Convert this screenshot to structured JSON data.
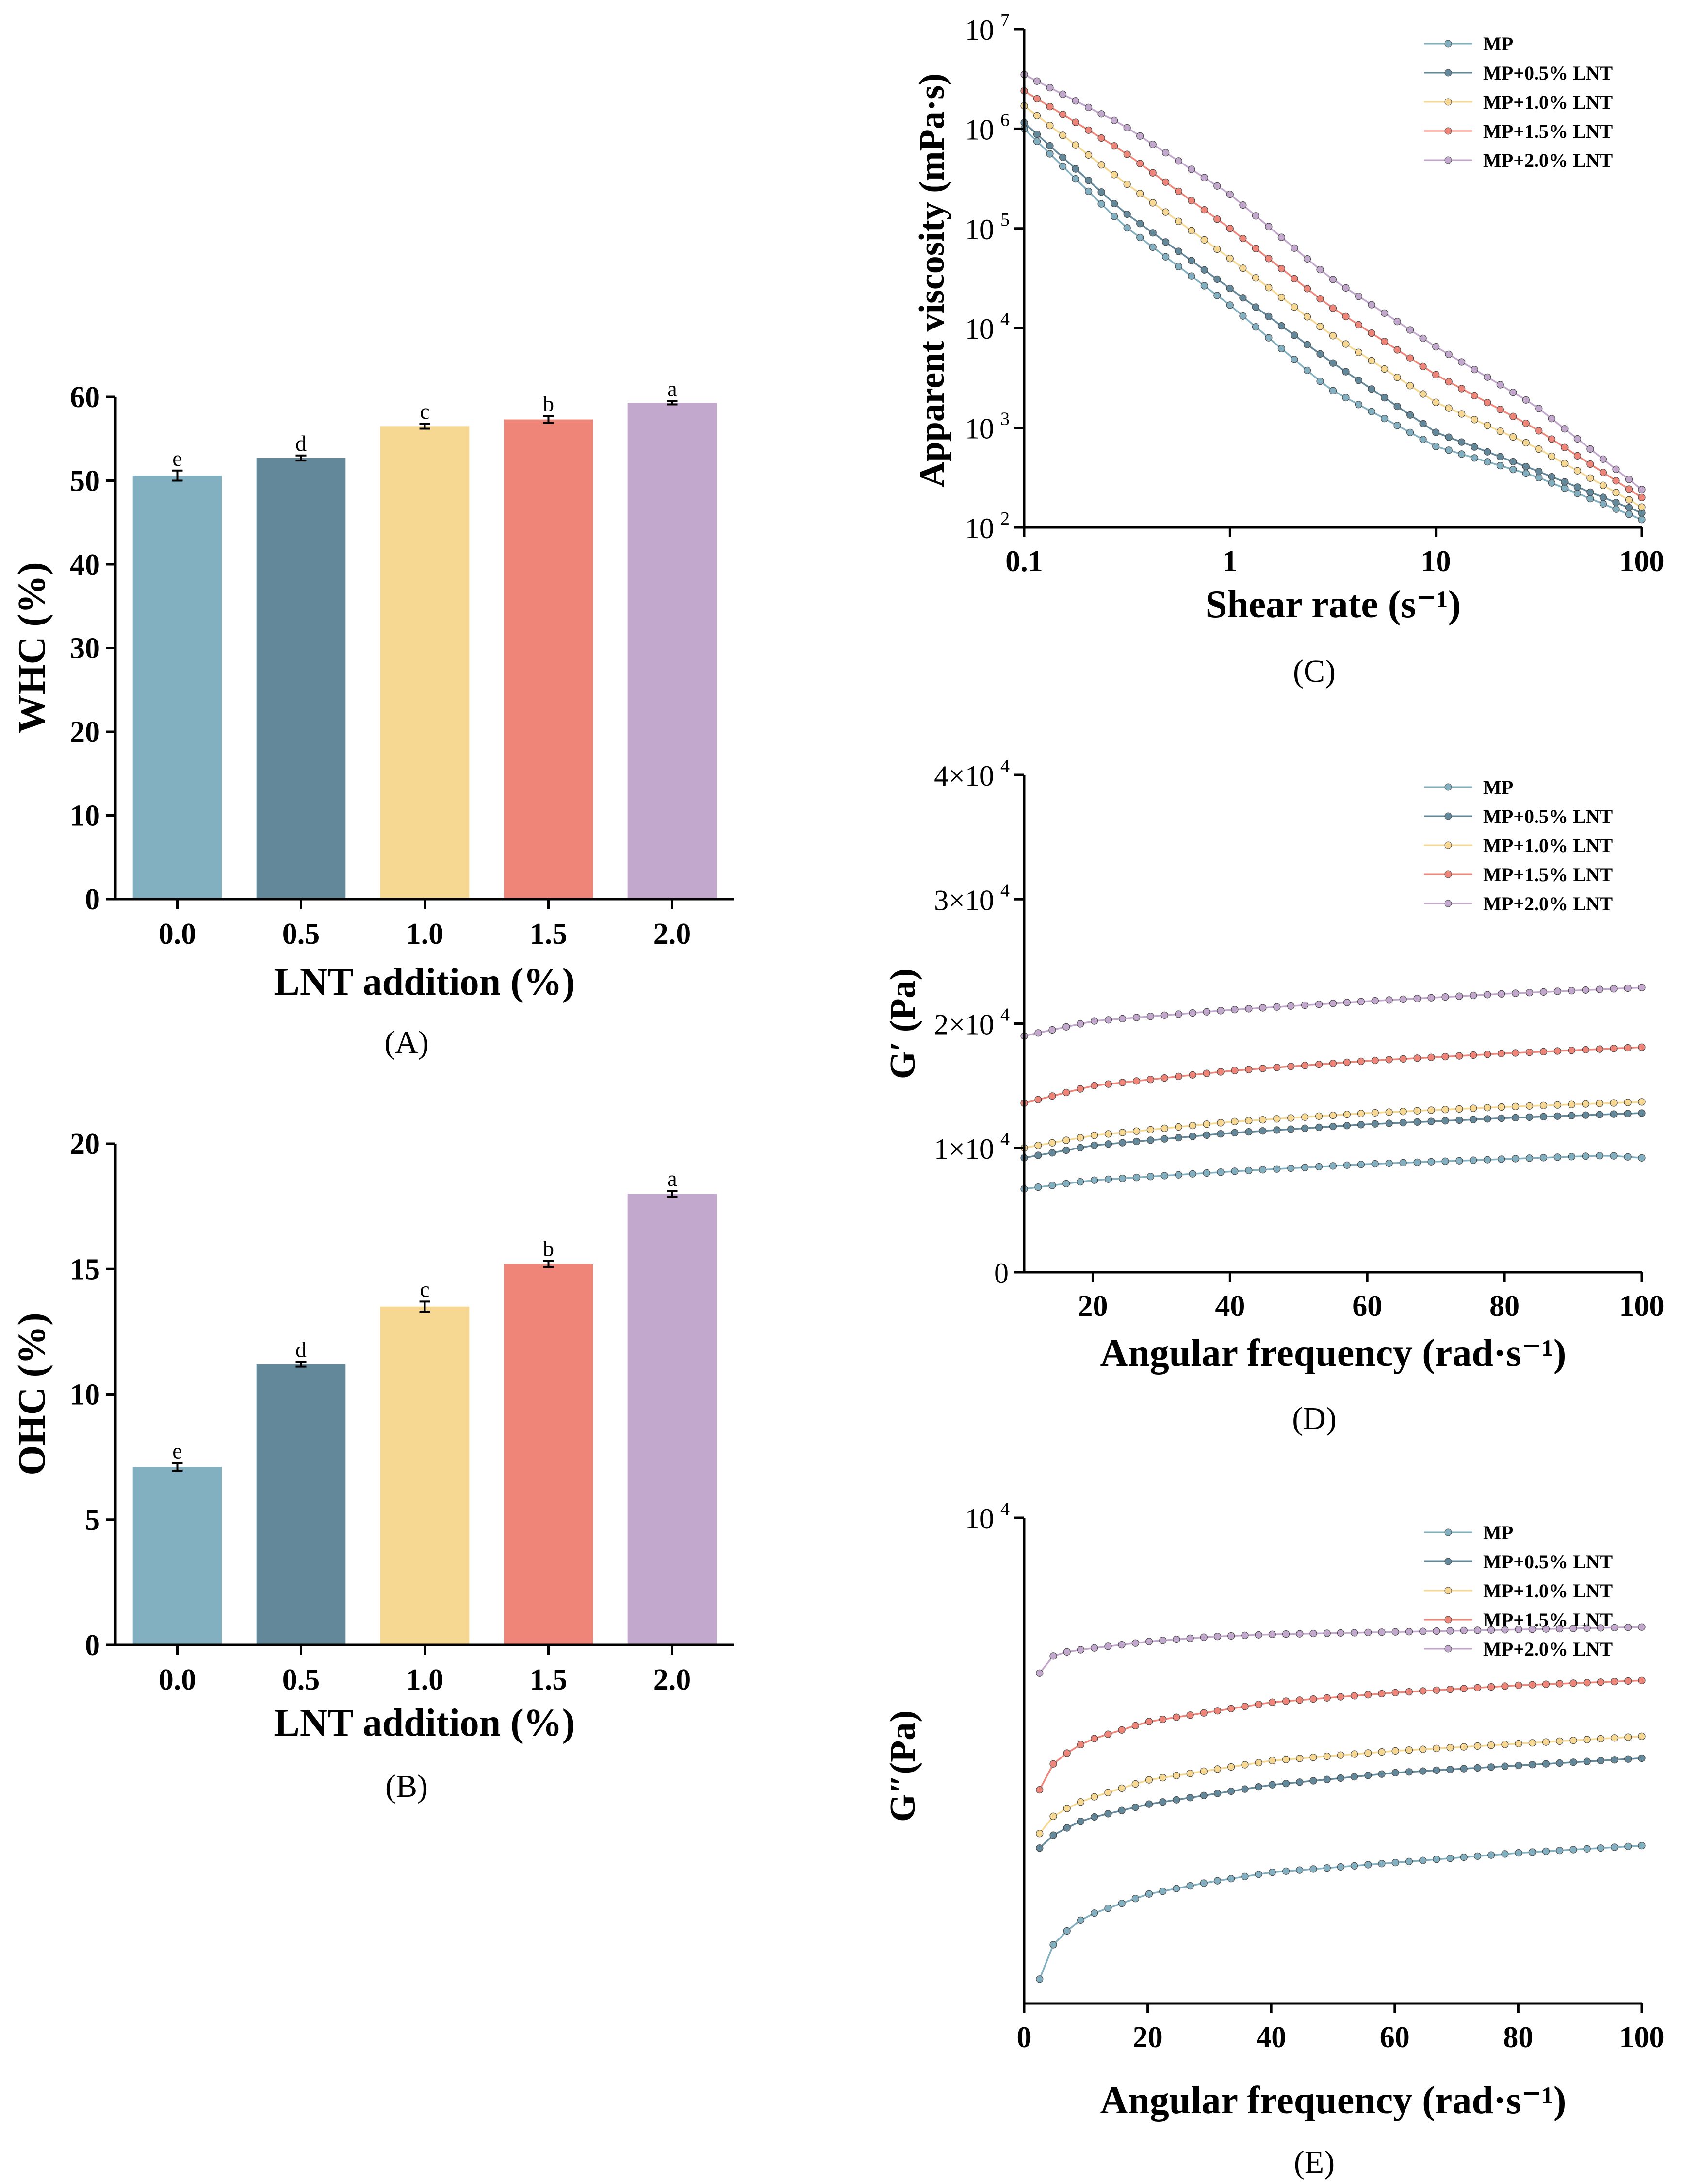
{
  "colors": {
    "mp": "#82b0c1",
    "lnt05": "#63889a",
    "lnt10": "#f7d892",
    "lnt15": "#ee8578",
    "lnt20": "#c3a8cd",
    "axis": "#000000"
  },
  "chart_data": [
    {
      "id": "A",
      "type": "bar",
      "panel_label": "(A)",
      "categories": [
        "0.0",
        "0.5",
        "1.0",
        "1.5",
        "2.0"
      ],
      "values": [
        50.6,
        52.7,
        56.5,
        57.3,
        59.3
      ],
      "errors": [
        0.6,
        0.3,
        0.3,
        0.4,
        0.2
      ],
      "letters": [
        "e",
        "d",
        "c",
        "b",
        "a"
      ],
      "xlabel": "LNT addition (%)",
      "ylabel": "WHC (%)",
      "ylim": [
        0,
        60
      ],
      "yticks": [
        0,
        10,
        20,
        30,
        40,
        50,
        60
      ],
      "ytick_labels": [
        "0",
        "10",
        "20",
        "30",
        "40",
        "50",
        "60"
      ]
    },
    {
      "id": "B",
      "type": "bar",
      "panel_label": "(B)",
      "categories": [
        "0.0",
        "0.5",
        "1.0",
        "1.5",
        "2.0"
      ],
      "values": [
        7.1,
        11.2,
        13.5,
        15.2,
        18.0
      ],
      "errors": [
        0.15,
        0.1,
        0.2,
        0.12,
        0.12
      ],
      "letters": [
        "e",
        "d",
        "c",
        "b",
        "a"
      ],
      "xlabel": "LNT addition (%)",
      "ylabel": "OHC (%)",
      "ylim": [
        0,
        20
      ],
      "yticks": [
        0,
        5,
        10,
        15,
        20
      ],
      "ytick_labels": [
        "0",
        "5",
        "10",
        "15",
        "20"
      ]
    },
    {
      "id": "C",
      "type": "line",
      "panel_label": "(C)",
      "xscale": "log",
      "yscale": "log",
      "xlabel": "Shear rate (s⁻¹)",
      "ylabel": "Apparent viscosity (mPa·s)",
      "xlim": [
        0.1,
        100
      ],
      "ylim": [
        100,
        10000000
      ],
      "xticks": [
        0.1,
        1,
        10,
        100
      ],
      "xtick_labels": [
        "0.1",
        "1",
        "10",
        "100"
      ],
      "yticks": [
        100,
        1000,
        10000,
        100000,
        1000000,
        10000000
      ],
      "ytick_base": "10",
      "ytick_exps": [
        "2",
        "3",
        "4",
        "5",
        "6",
        "7"
      ],
      "legend": [
        "MP",
        "MP+0.5% LNT",
        "MP+1.0% LNT",
        "MP+1.5% LNT",
        "MP+2.0% LNT"
      ],
      "legend_position": "top-right",
      "series": [
        {
          "name": "MP",
          "x": [
            0.1,
            0.3,
            1,
            3,
            10,
            30,
            100
          ],
          "y": [
            1000000,
            110000,
            17000,
            2500,
            650,
            330,
            120
          ]
        },
        {
          "name": "MP+0.5% LNT",
          "x": [
            0.1,
            0.3,
            1,
            3,
            10,
            30,
            100
          ],
          "y": [
            1150000,
            150000,
            25000,
            4800,
            900,
            380,
            140
          ]
        },
        {
          "name": "MP+1.0% LNT",
          "x": [
            0.1,
            0.3,
            1,
            3,
            10,
            30,
            100
          ],
          "y": [
            1700000,
            300000,
            50000,
            9000,
            1800,
            650,
            160
          ]
        },
        {
          "name": "MP+1.5% LNT",
          "x": [
            0.1,
            0.3,
            1,
            3,
            10,
            30,
            100
          ],
          "y": [
            2400000,
            600000,
            100000,
            17000,
            3400,
            1000,
            200
          ]
        },
        {
          "name": "MP+2.0% LNT",
          "x": [
            0.1,
            0.3,
            1,
            3,
            10,
            30,
            100
          ],
          "y": [
            3500000,
            1100000,
            220000,
            33000,
            6500,
            1700,
            240
          ]
        }
      ]
    },
    {
      "id": "D",
      "type": "line",
      "panel_label": "(D)",
      "xlabel": "Angular frequency (rad·s⁻¹)",
      "ylabel": "G′ (Pa)",
      "xlim": [
        10,
        100
      ],
      "ylim": [
        0,
        40000
      ],
      "xticks": [
        20,
        40,
        60,
        80,
        100
      ],
      "xtick_labels": [
        "20",
        "40",
        "60",
        "80",
        "100"
      ],
      "yticks": [
        0,
        10000,
        20000,
        30000,
        40000
      ],
      "ytick_labels": [
        "0",
        "1×10",
        "2×10",
        "3×10",
        "4×10"
      ],
      "ytick_exp": "4",
      "legend": [
        "MP",
        "MP+0.5% LNT",
        "MP+1.0% LNT",
        "MP+1.5% LNT",
        "MP+2.0% LNT"
      ],
      "legend_position": "top-right",
      "series": [
        {
          "name": "MP",
          "x": [
            10,
            20,
            40,
            60,
            80,
            95,
            100
          ],
          "y": [
            6700,
            7400,
            8100,
            8700,
            9100,
            9400,
            9200
          ]
        },
        {
          "name": "MP+0.5% LNT",
          "x": [
            10,
            20,
            40,
            60,
            80,
            100
          ],
          "y": [
            9200,
            10200,
            11200,
            11900,
            12400,
            12800
          ]
        },
        {
          "name": "MP+1.0% LNT",
          "x": [
            10,
            20,
            40,
            60,
            80,
            100
          ],
          "y": [
            10000,
            11000,
            12100,
            12800,
            13300,
            13700
          ]
        },
        {
          "name": "MP+1.5% LNT",
          "x": [
            10,
            20,
            40,
            60,
            80,
            100
          ],
          "y": [
            13600,
            15000,
            16200,
            17000,
            17600,
            18100
          ]
        },
        {
          "name": "MP+2.0% LNT",
          "x": [
            10,
            20,
            40,
            60,
            80,
            100
          ],
          "y": [
            19000,
            20200,
            21100,
            21800,
            22400,
            22900
          ]
        }
      ]
    },
    {
      "id": "E",
      "type": "line",
      "panel_label": "(E)",
      "xlabel": "Angular frequency (rad·s⁻¹)",
      "ylabel": "G″(Pa)",
      "xlim": [
        0,
        100
      ],
      "ylim_top_label": "10",
      "ylim_top_exp": "4",
      "xticks": [
        0,
        20,
        40,
        60,
        80,
        100
      ],
      "xtick_labels": [
        "0",
        "20",
        "40",
        "60",
        "80",
        "100"
      ],
      "legend": [
        "MP",
        "MP+0.5% LNT",
        "MP+1.0% LNT",
        "MP+1.5% LNT",
        "MP+2.0% LNT"
      ],
      "legend_position": "top-right",
      "series": [
        {
          "name": "MP",
          "x": [
            2.5,
            5,
            10,
            20,
            30,
            40,
            60,
            80,
            100
          ],
          "y": [
            0.05,
            0.13,
            0.18,
            0.225,
            0.25,
            0.27,
            0.29,
            0.31,
            0.325
          ]
        },
        {
          "name": "MP+0.5% LNT",
          "x": [
            2.5,
            5,
            10,
            20,
            30,
            40,
            60,
            80,
            100
          ],
          "y": [
            0.32,
            0.35,
            0.38,
            0.41,
            0.43,
            0.45,
            0.475,
            0.49,
            0.505
          ]
        },
        {
          "name": "MP+1.0% LNT",
          "x": [
            2.5,
            5,
            10,
            20,
            30,
            40,
            60,
            80,
            100
          ],
          "y": [
            0.35,
            0.39,
            0.42,
            0.46,
            0.48,
            0.5,
            0.52,
            0.535,
            0.55
          ]
        },
        {
          "name": "MP+1.5% LNT",
          "x": [
            2.5,
            5,
            10,
            20,
            30,
            40,
            60,
            80,
            100
          ],
          "y": [
            0.44,
            0.5,
            0.54,
            0.58,
            0.6,
            0.62,
            0.64,
            0.655,
            0.665
          ]
        },
        {
          "name": "MP+2.0% LNT",
          "x": [
            2.5,
            5,
            10,
            20,
            30,
            40,
            60,
            80,
            100
          ],
          "y": [
            0.68,
            0.72,
            0.73,
            0.745,
            0.755,
            0.76,
            0.765,
            0.77,
            0.775
          ]
        }
      ]
    }
  ]
}
